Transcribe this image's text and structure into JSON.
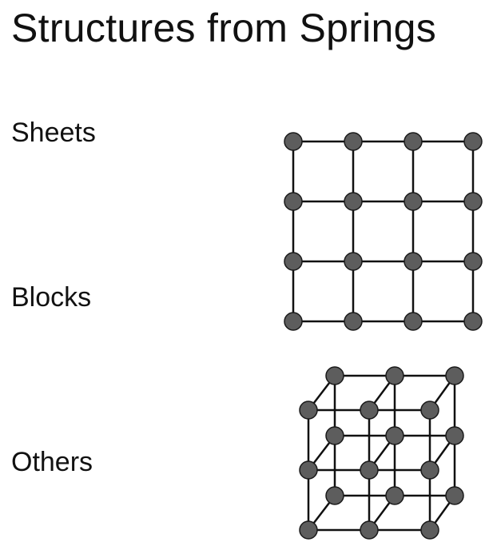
{
  "slide": {
    "title": "Structures from Springs"
  },
  "labels": {
    "sheets": "Sheets",
    "blocks": "Blocks",
    "others": "Others"
  },
  "diagrams": {
    "sheet_grid": {
      "rows": 4,
      "cols": 4,
      "node_icon": "mass-node"
    },
    "cube_lattice": {
      "layers": 2,
      "rows": 3,
      "cols": 3,
      "node_icon": "mass-node"
    }
  },
  "colors": {
    "node_fill": "#5d5d5d",
    "node_stroke": "#1a1a1a",
    "spring": "#111111",
    "text": "#111111",
    "background": "#ffffff"
  }
}
